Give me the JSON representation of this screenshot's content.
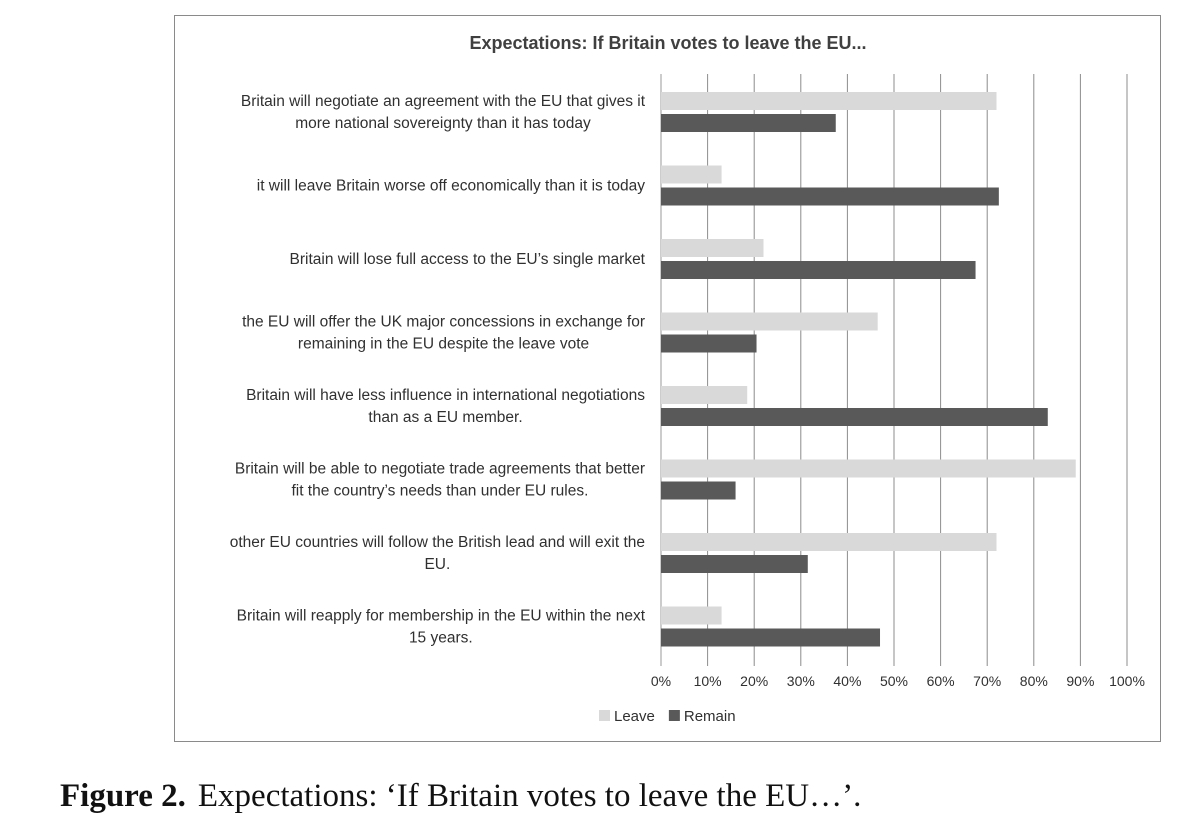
{
  "caption": {
    "label": "Figure 2.",
    "text": "Expectations: ‘If Britain votes to leave the EU…’."
  },
  "chart_data": {
    "type": "bar",
    "orientation": "horizontal",
    "title": "Expectations: If Britain votes to leave the EU...",
    "categories": [
      [
        "Britain will negotiate an agreement with the EU that gives it",
        "more national sovereignty than it has today"
      ],
      [
        "it will leave Britain  worse off economically than it is today"
      ],
      [
        "Britain will lose full access to the EU’s single market"
      ],
      [
        "the EU will offer the UK major concessions  in exchange for",
        "remaining in the EU despite the leave vote"
      ],
      [
        "Britain will have less influence in international negotiations",
        "than as a EU member."
      ],
      [
        "Britain will be able to negotiate trade agreements that better",
        "fit the country’s needs than under EU rules."
      ],
      [
        "other EU countries will follow the British lead and will exit the",
        "EU."
      ],
      [
        "Britain will reapply for membership in the EU within the next",
        "15 years."
      ]
    ],
    "series": [
      {
        "name": "Leave",
        "color": "#d9d9d9",
        "values": [
          72,
          13,
          22,
          46.5,
          18.5,
          89,
          72,
          13
        ]
      },
      {
        "name": "Remain",
        "color": "#595959",
        "values": [
          37.5,
          72.5,
          67.5,
          20.5,
          83,
          16,
          31.5,
          47
        ]
      }
    ],
    "x_ticks": [
      "0%",
      "10%",
      "20%",
      "30%",
      "40%",
      "50%",
      "60%",
      "70%",
      "80%",
      "90%",
      "100%"
    ],
    "xlim": [
      0,
      100
    ],
    "unit": "%",
    "grid": true,
    "legend_position": "bottom"
  }
}
